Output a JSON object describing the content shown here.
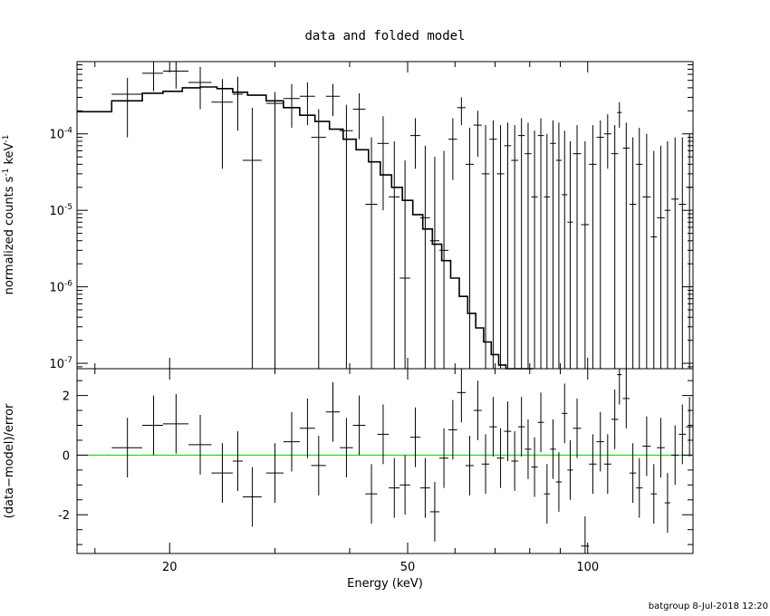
{
  "footer": "batgroup  8-Jul-2018 12:20",
  "chart_data": {
    "type": "scatter",
    "title": "data and folded model",
    "xlabel": "Energy (keV)",
    "xscale": "log",
    "xlim": [
      14,
      150
    ],
    "x_ticks": [
      {
        "value": 20,
        "label": "20"
      },
      {
        "value": 50,
        "label": "50"
      },
      {
        "value": 100,
        "label": "100"
      }
    ],
    "panels": [
      {
        "name": "upper",
        "ylabel_parts": [
          "normalized counts s",
          "-1",
          " keV",
          "-1"
        ],
        "yscale": "log",
        "ylim": [
          8.5e-08,
          0.00088
        ],
        "y_ticks": [
          {
            "value": 0.0001,
            "mantissa": "10",
            "exp": "-4"
          },
          {
            "value": 1e-05,
            "mantissa": "10",
            "exp": "-5"
          },
          {
            "value": 1e-06,
            "mantissa": "10",
            "exp": "-6"
          },
          {
            "value": 1e-07,
            "mantissa": "10",
            "exp": "-7"
          }
        ]
      },
      {
        "name": "lower",
        "ylabel": "(data−model)/error",
        "yscale": "linear",
        "ylim": [
          -3.3,
          2.9
        ],
        "y_ticks": [
          {
            "value": 2,
            "label": "2"
          },
          {
            "value": 0,
            "label": "0"
          },
          {
            "value": -2,
            "label": "-2"
          }
        ],
        "reference_line": 0,
        "reference_color": "#00cc00"
      }
    ],
    "model_step": {
      "edges": [
        14,
        16,
        18,
        19.5,
        21,
        22.5,
        24,
        25.5,
        27,
        29,
        31,
        33,
        35,
        37,
        39,
        41,
        43,
        45,
        47,
        49,
        51,
        53,
        55,
        57,
        59,
        61,
        63,
        65,
        67,
        69,
        71,
        73,
        75,
        77,
        79,
        81
      ],
      "values": [
        0.000195,
        0.00027,
        0.00034,
        0.00036,
        0.0004,
        0.00041,
        0.00039,
        0.00035,
        0.00032,
        0.00027,
        0.00022,
        0.000175,
        0.000145,
        0.000115,
        8.5e-05,
        6.2e-05,
        4.3e-05,
        2.9e-05,
        2e-05,
        1.35e-05,
        8.8e-06,
        5.7e-06,
        3.6e-06,
        2.2e-06,
        1.3e-06,
        7.5e-07,
        4.5e-07,
        2.9e-07,
        1.9e-07,
        1.3e-07,
        9.5e-08,
        6e-08,
        4e-08,
        2.5e-08,
        1.6e-08
      ]
    },
    "data_points": [
      {
        "x": 17.0,
        "xlo": 16.0,
        "xhi": 18.0,
        "y": 0.00033,
        "ylo": 9e-05,
        "yhi": 0.00054,
        "r": 0.25
      },
      {
        "x": 18.8,
        "xlo": 18.0,
        "xhi": 19.5,
        "y": 0.00062,
        "ylo": 0.00036,
        "yhi": 0.00088,
        "r": 1.0
      },
      {
        "x": 20.5,
        "xlo": 19.5,
        "xhi": 21.5,
        "y": 0.00066,
        "ylo": 0.00039,
        "yhi": 0.00088,
        "r": 1.05
      },
      {
        "x": 22.5,
        "xlo": 21.5,
        "xhi": 23.5,
        "y": 0.00047,
        "ylo": 0.00021,
        "yhi": 0.00075,
        "r": 0.35
      },
      {
        "x": 24.5,
        "xlo": 23.5,
        "xhi": 25.5,
        "y": 0.00026,
        "ylo": 3.5e-05,
        "yhi": 0.00052,
        "r": -0.6
      },
      {
        "x": 26.0,
        "xlo": 25.5,
        "xhi": 26.5,
        "y": 0.00033,
        "ylo": 0.00011,
        "yhi": 0.00056,
        "r": -0.2
      },
      {
        "x": 27.5,
        "xlo": 26.5,
        "xhi": 28.5,
        "y": 4.5e-05,
        "ylo": 8.5e-08,
        "yhi": 0.00022,
        "r": -1.4
      },
      {
        "x": 30.0,
        "xlo": 29.0,
        "xhi": 31.0,
        "y": 0.00025,
        "ylo": 8.5e-08,
        "yhi": 0.00035,
        "r": -0.6
      },
      {
        "x": 32.0,
        "xlo": 31.0,
        "xhi": 33.0,
        "y": 0.00029,
        "ylo": 0.00012,
        "yhi": 0.00045,
        "r": 0.45
      },
      {
        "x": 34.0,
        "xlo": 33.0,
        "xhi": 35.0,
        "y": 0.00031,
        "ylo": 0.00013,
        "yhi": 0.00047,
        "r": 0.9
      },
      {
        "x": 35.5,
        "xlo": 34.5,
        "xhi": 36.5,
        "y": 9e-05,
        "ylo": 8.5e-08,
        "yhi": 0.00021,
        "r": -0.35
      },
      {
        "x": 37.5,
        "xlo": 36.5,
        "xhi": 38.5,
        "y": 0.00031,
        "ylo": 0.00017,
        "yhi": 0.00045,
        "r": 1.45
      },
      {
        "x": 39.5,
        "xlo": 38.5,
        "xhi": 40.5,
        "y": 0.00011,
        "ylo": 8.5e-08,
        "yhi": 0.00024,
        "r": 0.25
      },
      {
        "x": 41.5,
        "xlo": 40.5,
        "xhi": 42.5,
        "y": 0.00021,
        "ylo": 8.5e-05,
        "yhi": 0.00034,
        "r": 1.0
      },
      {
        "x": 43.5,
        "xlo": 42.5,
        "xhi": 44.5,
        "y": 1.2e-05,
        "ylo": 8.5e-08,
        "yhi": 9e-05,
        "r": -1.3
      },
      {
        "x": 45.5,
        "xlo": 44.5,
        "xhi": 46.5,
        "y": 7.5e-05,
        "ylo": 1e-05,
        "yhi": 0.00017,
        "r": 0.7
      },
      {
        "x": 47.5,
        "xlo": 46.5,
        "xhi": 48.5,
        "y": 1.5e-05,
        "ylo": 8.5e-08,
        "yhi": 8e-05,
        "r": -1.1
      },
      {
        "x": 49.5,
        "xlo": 48.5,
        "xhi": 50.5,
        "y": 1.3e-06,
        "ylo": 8.5e-08,
        "yhi": 4.5e-05,
        "r": -1.0
      },
      {
        "x": 51.5,
        "xlo": 50.5,
        "xhi": 52.5,
        "y": 9.5e-05,
        "ylo": 3.5e-05,
        "yhi": 0.00016,
        "r": 0.6
      },
      {
        "x": 53.5,
        "xlo": 52.5,
        "xhi": 54.5,
        "y": 8e-06,
        "ylo": 8.5e-08,
        "yhi": 7e-05,
        "r": -1.1
      },
      {
        "x": 55.5,
        "xlo": 54.5,
        "xhi": 56.5,
        "y": 4e-06,
        "ylo": 8.5e-08,
        "yhi": 5e-05,
        "r": -1.9
      },
      {
        "x": 57.5,
        "xlo": 56.5,
        "xhi": 58.5,
        "y": 3e-06,
        "ylo": 8.5e-08,
        "yhi": 6e-05,
        "r": -0.1
      },
      {
        "x": 59.5,
        "xlo": 58.5,
        "xhi": 60.5,
        "y": 8.5e-05,
        "ylo": 2.5e-05,
        "yhi": 0.00016,
        "r": 0.85
      },
      {
        "x": 61.5,
        "xlo": 60.5,
        "xhi": 62.5,
        "y": 0.00022,
        "ylo": 0.00013,
        "yhi": 0.0003,
        "r": 2.1
      },
      {
        "x": 63.5,
        "xlo": 62.5,
        "xhi": 64.5,
        "y": 4e-05,
        "ylo": 8.5e-08,
        "yhi": 0.00012,
        "r": -0.35
      },
      {
        "x": 65.5,
        "xlo": 64.5,
        "xhi": 66.5,
        "y": 0.00013,
        "ylo": 5e-05,
        "yhi": 0.0002,
        "r": 1.5
      },
      {
        "x": 67.5,
        "xlo": 66.5,
        "xhi": 68.5,
        "y": 3e-05,
        "ylo": 8.5e-08,
        "yhi": 0.00013,
        "r": -0.3
      },
      {
        "x": 69.5,
        "xlo": 68.5,
        "xhi": 70.5,
        "y": 8.5e-05,
        "ylo": 8.5e-08,
        "yhi": 0.00015,
        "r": 0.95
      },
      {
        "x": 71.5,
        "xlo": 70.5,
        "xhi": 72.5,
        "y": 3e-05,
        "ylo": 8.5e-08,
        "yhi": 0.00013,
        "r": -0.1
      },
      {
        "x": 73.5,
        "xlo": 72.5,
        "xhi": 74.5,
        "y": 7e-05,
        "ylo": 8.5e-08,
        "yhi": 0.00014,
        "r": 0.8
      },
      {
        "x": 75.5,
        "xlo": 74.5,
        "xhi": 76.5,
        "y": 4.5e-05,
        "ylo": 8.5e-08,
        "yhi": 0.00013,
        "r": -0.2
      },
      {
        "x": 77.5,
        "xlo": 76.5,
        "xhi": 78.5,
        "y": 9.5e-05,
        "ylo": 8.5e-08,
        "yhi": 0.00016,
        "r": 0.95
      },
      {
        "x": 79.5,
        "xlo": 78.5,
        "xhi": 80.5,
        "y": 5.5e-05,
        "ylo": 8.5e-08,
        "yhi": 0.00014,
        "r": 0.2
      },
      {
        "x": 81.5,
        "xlo": 80.5,
        "xhi": 82.5,
        "y": 1.5e-05,
        "ylo": 8.5e-08,
        "yhi": 0.00011,
        "r": -0.4
      },
      {
        "x": 83.5,
        "xlo": 82.5,
        "xhi": 84.5,
        "y": 9.5e-05,
        "ylo": 8.5e-08,
        "yhi": 0.00016,
        "r": 1.1
      },
      {
        "x": 85.5,
        "xlo": 84.5,
        "xhi": 86.5,
        "y": 1.5e-05,
        "ylo": 8.5e-08,
        "yhi": 0.0001,
        "r": -1.3
      },
      {
        "x": 87.5,
        "xlo": 86.5,
        "xhi": 88.5,
        "y": 7.5e-05,
        "ylo": 8.5e-08,
        "yhi": 0.00015,
        "r": 0.2
      },
      {
        "x": 89.5,
        "xlo": 88.5,
        "xhi": 90.5,
        "y": 4.5e-05,
        "ylo": 8.5e-08,
        "yhi": 0.00014,
        "r": -0.9
      },
      {
        "x": 91.5,
        "xlo": 90.5,
        "xhi": 92.5,
        "y": 1.6e-05,
        "ylo": 8.5e-08,
        "yhi": 0.00011,
        "r": 1.4
      },
      {
        "x": 93.5,
        "xlo": 92.5,
        "xhi": 94.5,
        "y": 7e-06,
        "ylo": 8.5e-08,
        "yhi": 8e-05,
        "r": -0.5
      },
      {
        "x": 96.0,
        "xlo": 94.5,
        "xhi": 97.5,
        "y": 5.5e-05,
        "ylo": 8.5e-08,
        "yhi": 0.00013,
        "r": 0.9
      },
      {
        "x": 99.0,
        "xlo": 97.5,
        "xhi": 100.5,
        "y": 6.5e-06,
        "ylo": 8.5e-08,
        "yhi": 8e-05,
        "r": -3.05
      },
      {
        "x": 102.0,
        "xlo": 100.5,
        "xhi": 103.5,
        "y": 4e-05,
        "ylo": 8.5e-08,
        "yhi": 0.00013,
        "r": -0.3
      },
      {
        "x": 105.0,
        "xlo": 103.5,
        "xhi": 106.5,
        "y": 9e-05,
        "ylo": 8.5e-08,
        "yhi": 0.00015,
        "r": 0.45
      },
      {
        "x": 108.0,
        "xlo": 106.5,
        "xhi": 109.5,
        "y": 0.0001,
        "ylo": 3.5e-05,
        "yhi": 0.00018,
        "r": -0.3
      },
      {
        "x": 111.0,
        "xlo": 109.5,
        "xhi": 112.5,
        "y": 5.5e-05,
        "ylo": 8.5e-08,
        "yhi": 0.00013,
        "r": 1.2
      },
      {
        "x": 113.0,
        "xlo": 112.0,
        "xhi": 114.0,
        "y": 0.00019,
        "ylo": 0.00012,
        "yhi": 0.00026,
        "r": 2.7
      },
      {
        "x": 116.0,
        "xlo": 114.5,
        "xhi": 117.5,
        "y": 6.5e-05,
        "ylo": 8.5e-08,
        "yhi": 0.00014,
        "r": 1.9
      },
      {
        "x": 119.0,
        "xlo": 117.5,
        "xhi": 120.5,
        "y": 1.2e-05,
        "ylo": 8.5e-08,
        "yhi": 9e-05,
        "r": -0.6
      },
      {
        "x": 122.0,
        "xlo": 120.5,
        "xhi": 123.5,
        "y": 4e-05,
        "ylo": 8.5e-08,
        "yhi": 0.00012,
        "r": -1.1
      },
      {
        "x": 125.5,
        "xlo": 123.5,
        "xhi": 127.5,
        "y": 1.5e-05,
        "ylo": 8.5e-08,
        "yhi": 0.0001,
        "r": 0.3
      },
      {
        "x": 129.0,
        "xlo": 127.5,
        "xhi": 130.5,
        "y": 4.5e-06,
        "ylo": 8.5e-08,
        "yhi": 6e-05,
        "r": -1.3
      },
      {
        "x": 132.5,
        "xlo": 130.5,
        "xhi": 134.5,
        "y": 8e-06,
        "ylo": 8.5e-08,
        "yhi": 7e-05,
        "r": 0.25
      },
      {
        "x": 136.0,
        "xlo": 134.5,
        "xhi": 137.5,
        "y": 1e-05,
        "ylo": 8.5e-08,
        "yhi": 8e-05,
        "r": -1.6
      },
      {
        "x": 140.0,
        "xlo": 138.0,
        "xhi": 142.0,
        "y": 1.4e-05,
        "ylo": 8.5e-08,
        "yhi": 9e-05,
        "r": 0.0
      },
      {
        "x": 144.0,
        "xlo": 142.0,
        "xhi": 146.0,
        "y": 1.2e-05,
        "ylo": 8.5e-08,
        "yhi": 9e-05,
        "r": 0.7
      },
      {
        "x": 148.0,
        "xlo": 146.0,
        "xhi": 150.0,
        "y": 2e-05,
        "ylo": 8.5e-08,
        "yhi": 0.0001,
        "r": 0.95
      }
    ]
  }
}
